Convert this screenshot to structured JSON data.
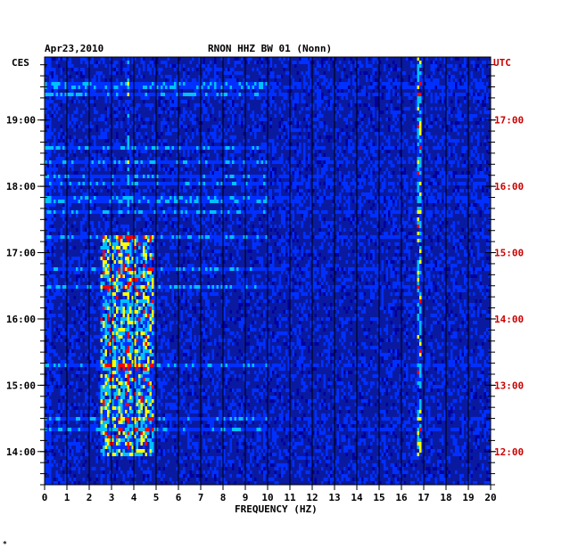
{
  "header": {
    "date": "Apr23,2010",
    "station": "RNON HHZ BW 01 (Nonn)"
  },
  "chart_data": {
    "type": "heatmap",
    "title": "RNON HHZ BW 01 (Nonn)",
    "date": "Apr23,2010",
    "xlabel": "FREQUENCY (HZ)",
    "xlim": [
      0,
      20
    ],
    "x_ticks": [
      "0",
      "1",
      "2",
      "3",
      "4",
      "5",
      "6",
      "7",
      "8",
      "9",
      "10",
      "11",
      "12",
      "13",
      "14",
      "15",
      "16",
      "17",
      "18",
      "19",
      "20"
    ],
    "left_axis": {
      "timezone": "CES",
      "ticks": [
        "14:00",
        "15:00",
        "16:00",
        "17:00",
        "18:00",
        "19:00"
      ]
    },
    "right_axis": {
      "timezone": "UTC",
      "ticks": [
        "12:00",
        "13:00",
        "14:00",
        "15:00",
        "16:00",
        "17:00"
      ]
    },
    "time_range_hours": [
      13.5,
      19.95
    ],
    "colormap": [
      "#0000a0",
      "#0030ff",
      "#00c0ff",
      "#ffff00",
      "#ff0000"
    ],
    "background_color": "#0a1aa0",
    "grid": true,
    "features": [
      {
        "freq_range": [
          2.5,
          4.8
        ],
        "time_range": [
          13.95,
          17.3
        ],
        "intensity": "high"
      },
      {
        "freq_range": [
          16.6,
          16.8
        ],
        "time_range": [
          13.95,
          19.95
        ],
        "intensity": "high"
      },
      {
        "freq_range": [
          3.6,
          3.7
        ],
        "time_range": [
          13.95,
          19.95
        ],
        "intensity": "medium"
      }
    ]
  },
  "colors": {
    "axis_text": "#000000",
    "utc_text": "#cc0000"
  },
  "footer": {
    "mark": "*"
  }
}
